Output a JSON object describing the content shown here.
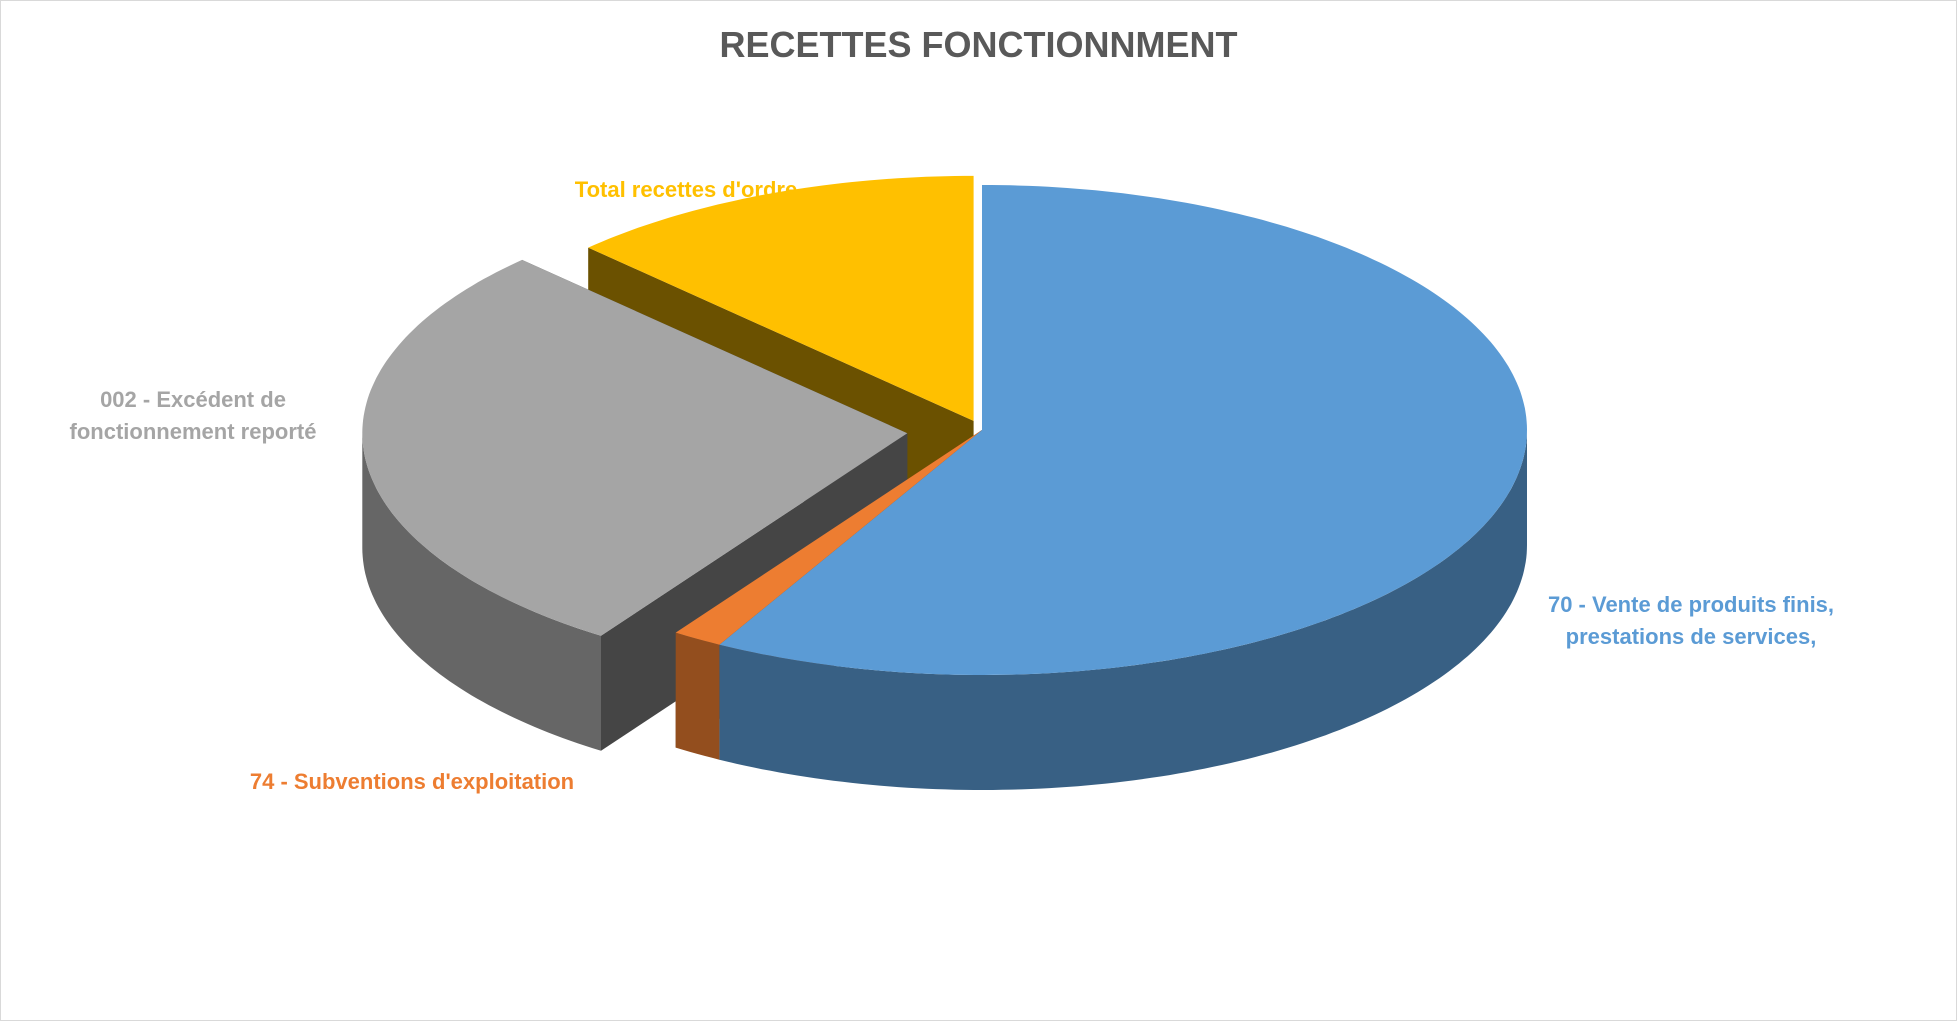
{
  "chart_data": {
    "type": "pie3d",
    "title": "RECETTES FONCTIONNMENT",
    "categories": [
      "70 - Vente de produits finis, prestations de services,",
      "74 - Subventions d'exploitation",
      "002 - Excédent de fonctionnement reporté",
      "Total recettes d'ordre"
    ],
    "values": [
      58,
      1.5,
      28,
      12.5
    ],
    "colors": [
      "#5b9bd5",
      "#ed7d31",
      "#a5a5a5",
      "#ffc000"
    ]
  }
}
